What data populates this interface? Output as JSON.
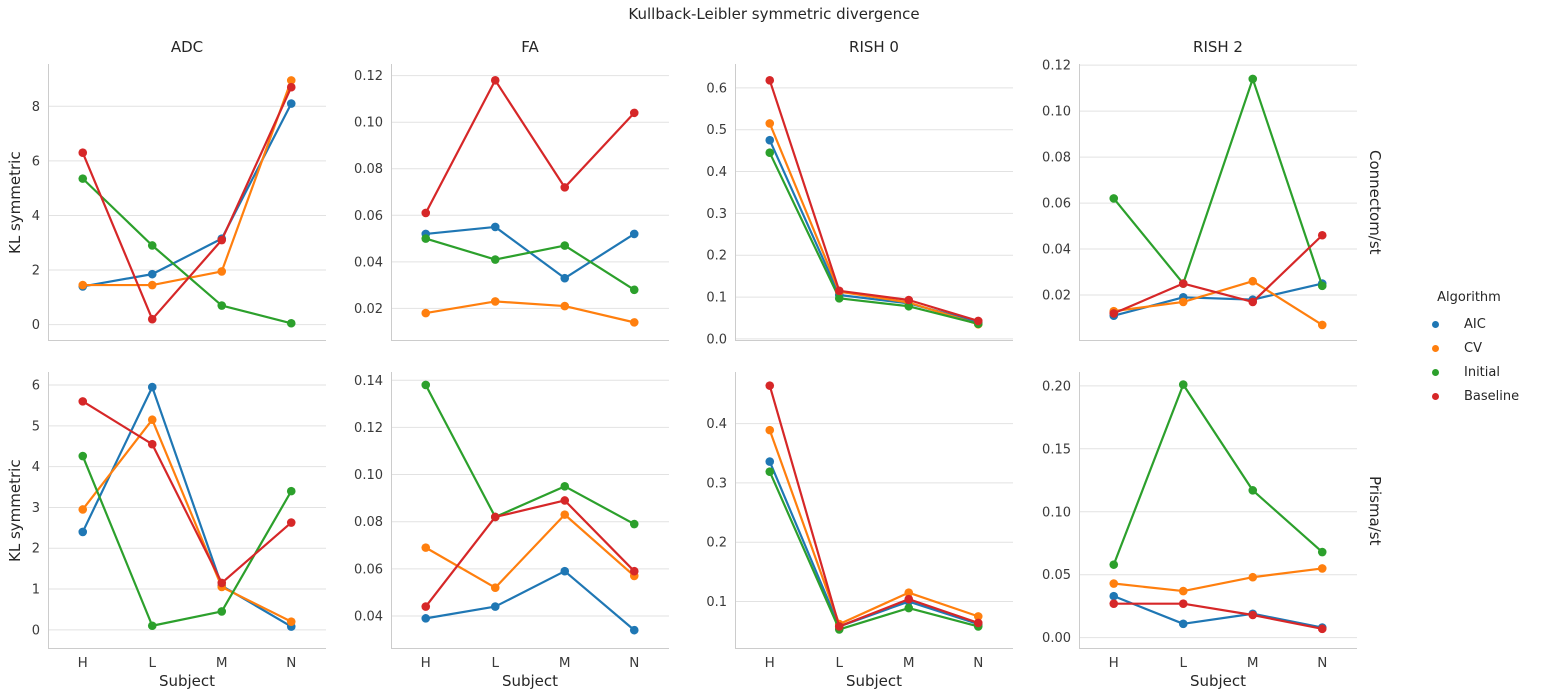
{
  "title": "Kullback-Leibler symmetric divergence",
  "labels": {
    "ylabel": "KL symmetric",
    "xlabel": "Subject",
    "col_titles": [
      "ADC",
      "FA",
      "RISH 0",
      "RISH 2"
    ],
    "row_labels": [
      "Connectom/st",
      "Prisma/st"
    ]
  },
  "legend": {
    "title": "Algorithm",
    "entries": [
      {
        "label": "AIC",
        "color": "#1f77b4"
      },
      {
        "label": "CV",
        "color": "#ff7f0e"
      },
      {
        "label": "Initial",
        "color": "#2ca02c"
      },
      {
        "label": "Baseline",
        "color": "#d62728"
      }
    ]
  },
  "style": {
    "grid_color": "#e2e2e2",
    "spine_color": "#cccccc",
    "text_color": "#3a3a3a",
    "line_width": 2.2,
    "marker_radius": 4.3
  },
  "chart_data": [
    {
      "type": "line",
      "row": "Connectom/st",
      "col": "ADC",
      "categories": [
        "H",
        "L",
        "M",
        "N"
      ],
      "show_x_ticks": false,
      "ylim": [
        -0.6,
        9.55
      ],
      "yticks": [
        0,
        2,
        4,
        6,
        8
      ],
      "ytick_labels": [
        "0",
        "2",
        "4",
        "6",
        "8"
      ],
      "series": [
        {
          "name": "AIC",
          "values": [
            1.4,
            1.85,
            3.15,
            8.1
          ]
        },
        {
          "name": "CV",
          "values": [
            1.45,
            1.45,
            1.95,
            8.95
          ]
        },
        {
          "name": "Initial",
          "values": [
            5.35,
            2.9,
            0.7,
            0.05
          ]
        },
        {
          "name": "Baseline",
          "values": [
            6.3,
            0.2,
            3.1,
            8.7
          ]
        }
      ]
    },
    {
      "type": "line",
      "row": "Connectom/st",
      "col": "FA",
      "categories": [
        "H",
        "L",
        "M",
        "N"
      ],
      "show_x_ticks": false,
      "ylim": [
        0.006,
        0.125
      ],
      "yticks": [
        0.02,
        0.04,
        0.06,
        0.08,
        0.1,
        0.12
      ],
      "ytick_labels": [
        "0.02",
        "0.04",
        "0.06",
        "0.08",
        "0.10",
        "0.12"
      ],
      "series": [
        {
          "name": "AIC",
          "values": [
            0.052,
            0.055,
            0.033,
            0.052
          ]
        },
        {
          "name": "CV",
          "values": [
            0.018,
            0.023,
            0.021,
            0.014
          ]
        },
        {
          "name": "Initial",
          "values": [
            0.05,
            0.041,
            0.047,
            0.028
          ]
        },
        {
          "name": "Baseline",
          "values": [
            0.061,
            0.118,
            0.072,
            0.104
          ]
        }
      ]
    },
    {
      "type": "line",
      "row": "Connectom/st",
      "col": "RISH 0",
      "categories": [
        "H",
        "L",
        "M",
        "N"
      ],
      "show_x_ticks": false,
      "ylim": [
        -0.005,
        0.657
      ],
      "yticks": [
        0.0,
        0.1,
        0.2,
        0.3,
        0.4,
        0.5,
        0.6
      ],
      "ytick_labels": [
        "0.0",
        "0.1",
        "0.2",
        "0.3",
        "0.4",
        "0.5",
        "0.6"
      ],
      "series": [
        {
          "name": "AIC",
          "values": [
            0.475,
            0.105,
            0.085,
            0.04
          ]
        },
        {
          "name": "CV",
          "values": [
            0.515,
            0.113,
            0.087,
            0.035
          ]
        },
        {
          "name": "Initial",
          "values": [
            0.445,
            0.097,
            0.078,
            0.036
          ]
        },
        {
          "name": "Baseline",
          "values": [
            0.618,
            0.115,
            0.093,
            0.043
          ]
        }
      ]
    },
    {
      "type": "line",
      "row": "Connectom/st",
      "col": "RISH 2",
      "categories": [
        "H",
        "L",
        "M",
        "N"
      ],
      "show_x_ticks": false,
      "ylim": [
        0.0,
        0.1205
      ],
      "yticks": [
        0.02,
        0.04,
        0.06,
        0.08,
        0.1,
        0.12
      ],
      "ytick_labels": [
        "0.02",
        "0.04",
        "0.06",
        "0.08",
        "0.10",
        "0.12"
      ],
      "series": [
        {
          "name": "AIC",
          "values": [
            0.011,
            0.019,
            0.018,
            0.025
          ]
        },
        {
          "name": "CV",
          "values": [
            0.013,
            0.017,
            0.026,
            0.007
          ]
        },
        {
          "name": "Initial",
          "values": [
            0.062,
            0.025,
            0.114,
            0.024
          ]
        },
        {
          "name": "Baseline",
          "values": [
            0.012,
            0.025,
            0.017,
            0.046
          ]
        }
      ]
    },
    {
      "type": "line",
      "row": "Prisma/st",
      "col": "ADC",
      "categories": [
        "H",
        "L",
        "M",
        "N"
      ],
      "show_x_ticks": true,
      "ylim": [
        -0.47,
        6.32
      ],
      "yticks": [
        0,
        1,
        2,
        3,
        4,
        5,
        6
      ],
      "ytick_labels": [
        "0",
        "1",
        "2",
        "3",
        "4",
        "5",
        "6"
      ],
      "series": [
        {
          "name": "AIC",
          "values": [
            2.4,
            5.95,
            1.08,
            0.08
          ]
        },
        {
          "name": "CV",
          "values": [
            2.95,
            5.15,
            1.05,
            0.2
          ]
        },
        {
          "name": "Initial",
          "values": [
            4.26,
            0.1,
            0.45,
            3.4
          ]
        },
        {
          "name": "Baseline",
          "values": [
            5.6,
            4.55,
            1.15,
            2.63
          ]
        }
      ]
    },
    {
      "type": "line",
      "row": "Prisma/st",
      "col": "FA",
      "categories": [
        "H",
        "L",
        "M",
        "N"
      ],
      "show_x_ticks": true,
      "ylim": [
        0.026,
        0.1435
      ],
      "yticks": [
        0.04,
        0.06,
        0.08,
        0.1,
        0.12,
        0.14
      ],
      "ytick_labels": [
        "0.04",
        "0.06",
        "0.08",
        "0.10",
        "0.12",
        "0.14"
      ],
      "series": [
        {
          "name": "AIC",
          "values": [
            0.039,
            0.044,
            0.059,
            0.034
          ]
        },
        {
          "name": "CV",
          "values": [
            0.069,
            0.052,
            0.083,
            0.057
          ]
        },
        {
          "name": "Initial",
          "values": [
            0.138,
            0.082,
            0.095,
            0.079
          ]
        },
        {
          "name": "Baseline",
          "values": [
            0.044,
            0.082,
            0.089,
            0.059
          ]
        }
      ]
    },
    {
      "type": "line",
      "row": "Prisma/st",
      "col": "RISH 0",
      "categories": [
        "H",
        "L",
        "M",
        "N"
      ],
      "show_x_ticks": true,
      "ylim": [
        0.02,
        0.487
      ],
      "yticks": [
        0.1,
        0.2,
        0.3,
        0.4
      ],
      "ytick_labels": [
        "0.1",
        "0.2",
        "0.3",
        "0.4"
      ],
      "series": [
        {
          "name": "AIC",
          "values": [
            0.336,
            0.058,
            0.1,
            0.062
          ]
        },
        {
          "name": "CV",
          "values": [
            0.389,
            0.062,
            0.115,
            0.075
          ]
        },
        {
          "name": "Initial",
          "values": [
            0.319,
            0.053,
            0.089,
            0.058
          ]
        },
        {
          "name": "Baseline",
          "values": [
            0.464,
            0.058,
            0.104,
            0.064
          ]
        }
      ]
    },
    {
      "type": "line",
      "row": "Prisma/st",
      "col": "RISH 2",
      "categories": [
        "H",
        "L",
        "M",
        "N"
      ],
      "show_x_ticks": true,
      "ylim": [
        -0.009,
        0.211
      ],
      "yticks": [
        0.0,
        0.05,
        0.1,
        0.15,
        0.2
      ],
      "ytick_labels": [
        "0.00",
        "0.05",
        "0.10",
        "0.15",
        "0.20"
      ],
      "series": [
        {
          "name": "AIC",
          "values": [
            0.033,
            0.011,
            0.019,
            0.008
          ]
        },
        {
          "name": "CV",
          "values": [
            0.043,
            0.037,
            0.048,
            0.055
          ]
        },
        {
          "name": "Initial",
          "values": [
            0.058,
            0.201,
            0.117,
            0.068
          ]
        },
        {
          "name": "Baseline",
          "values": [
            0.027,
            0.027,
            0.018,
            0.007
          ]
        }
      ]
    }
  ]
}
